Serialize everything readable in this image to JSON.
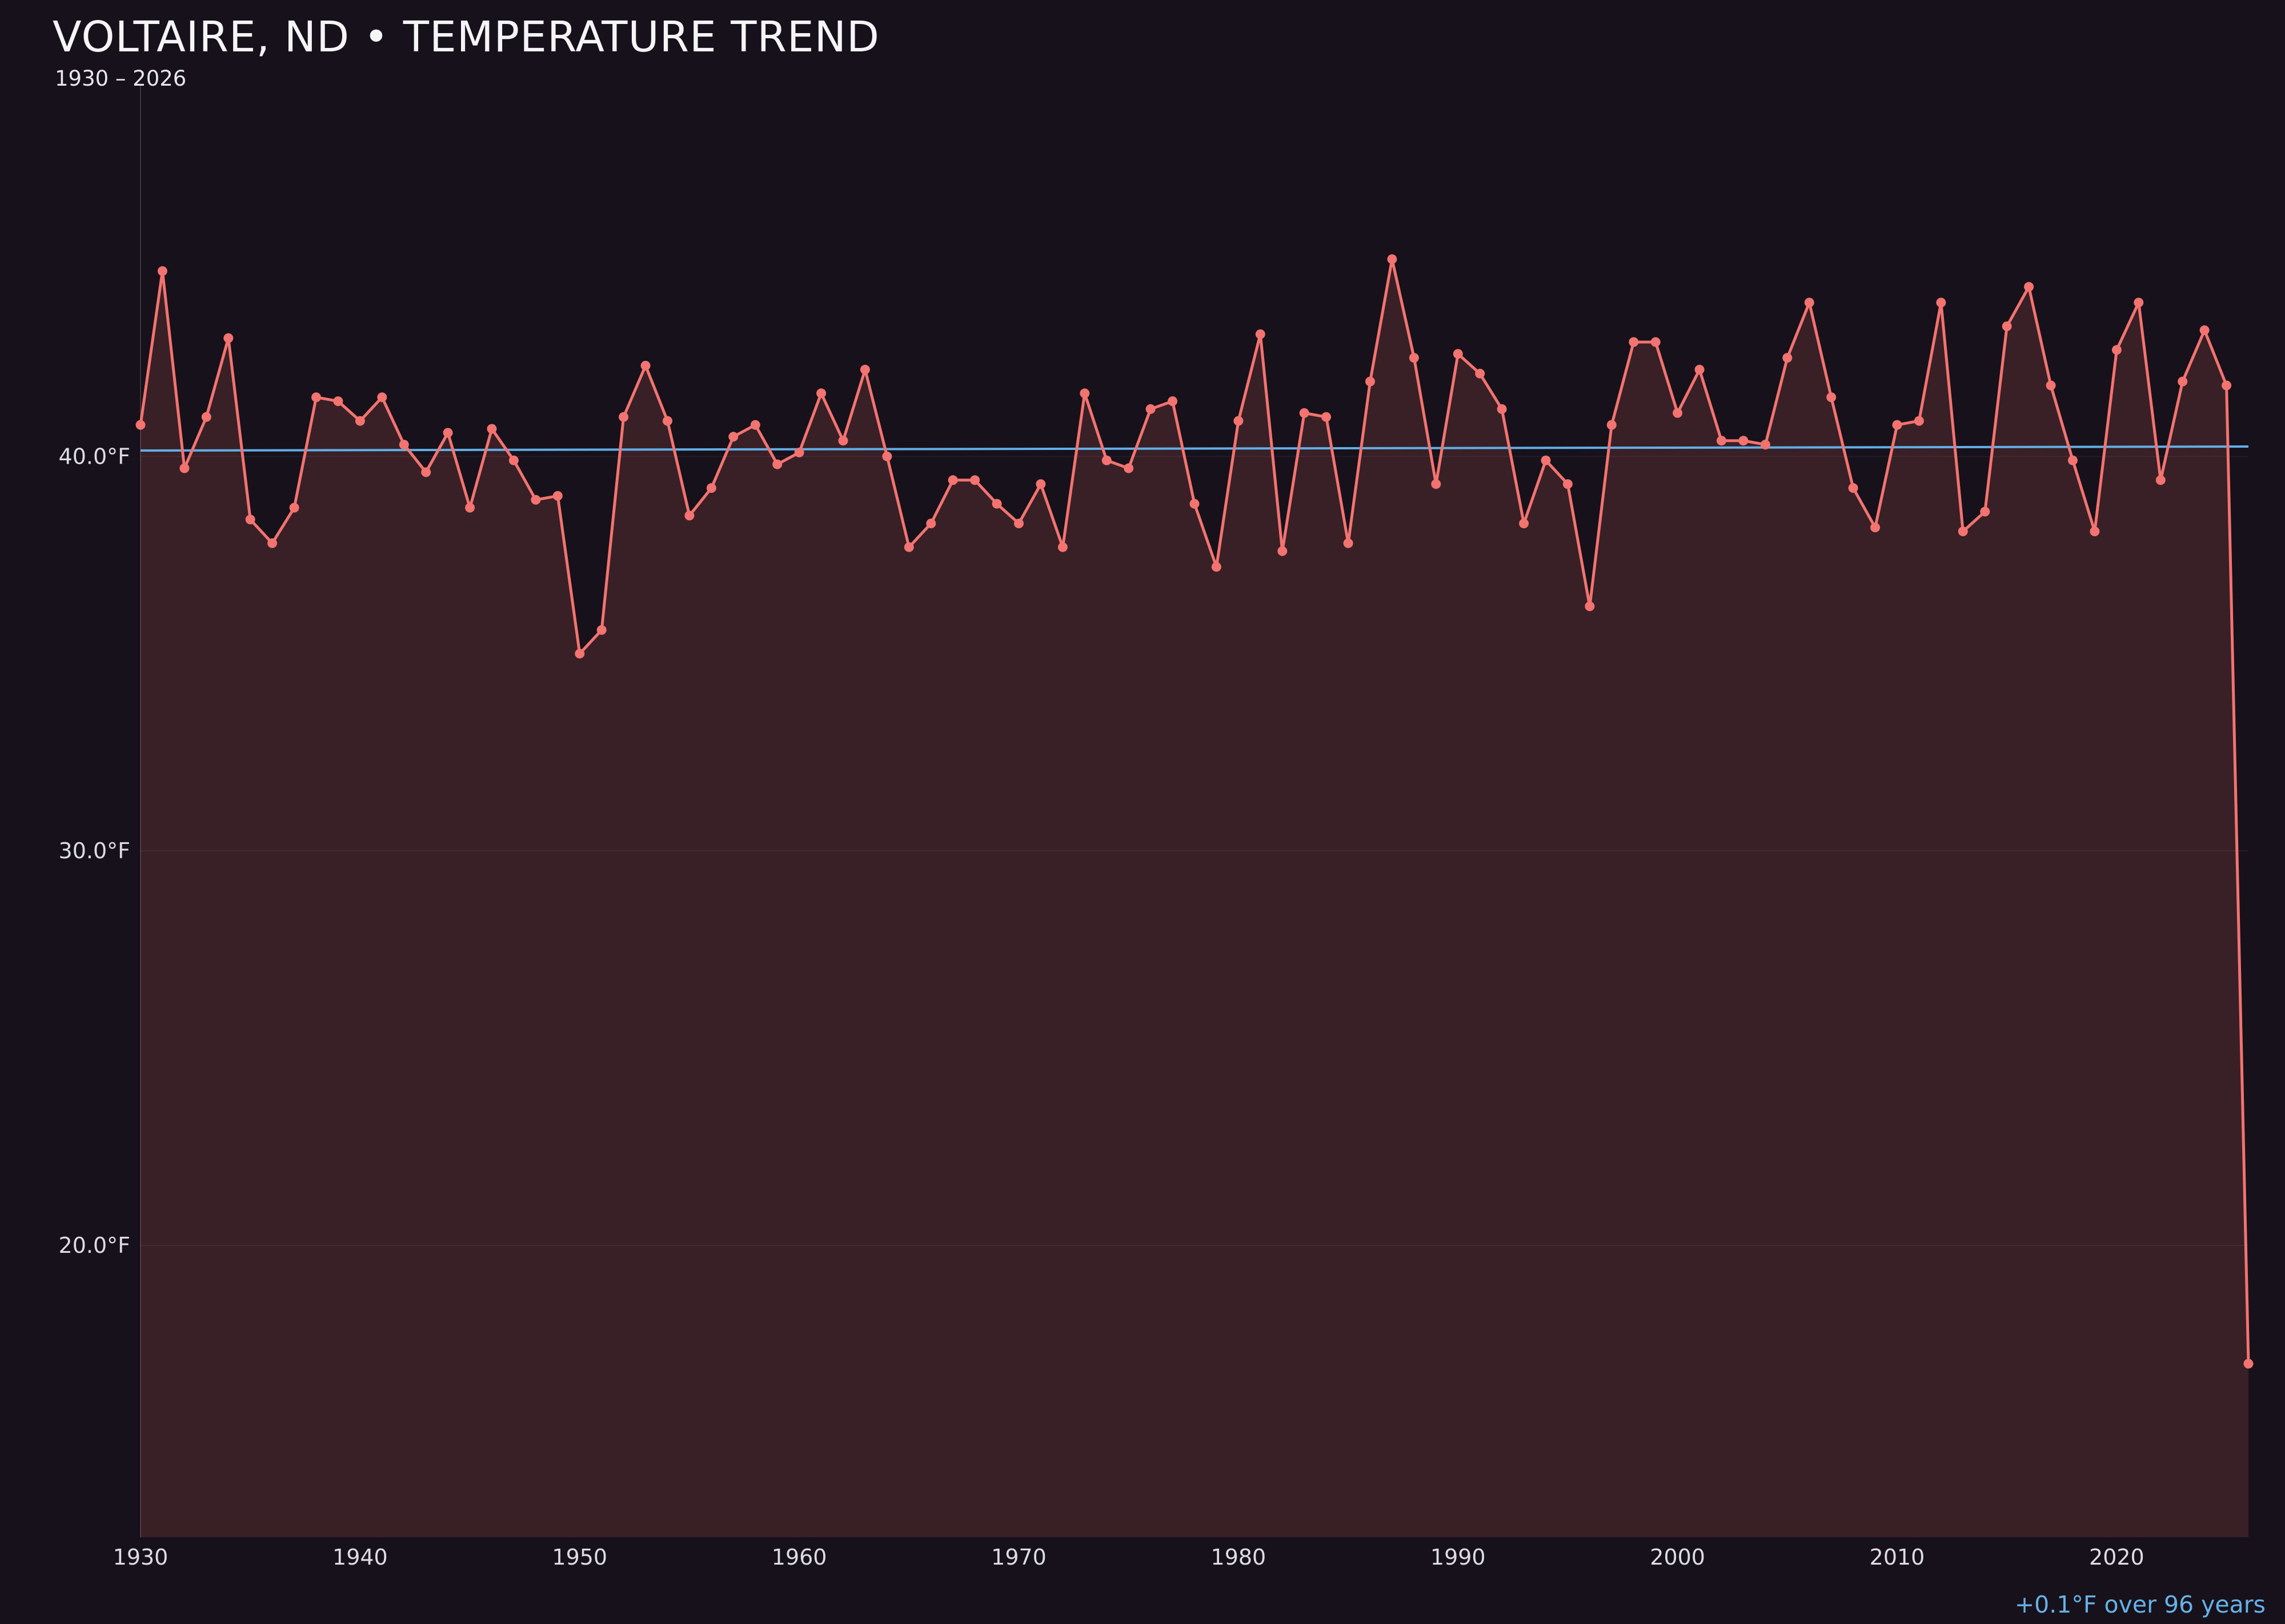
{
  "header": {
    "title": "VOLTAIRE, ND • TEMPERATURE TREND",
    "subtitle": "1930 – 2026"
  },
  "footer": {
    "trend_label": "+0.1°F over 96 years"
  },
  "colors": {
    "background": "#16111a",
    "line": "#f2736f",
    "fill": "rgba(242,115,111,0.16)",
    "trend": "#62aee6",
    "title_text": "#f5f5f7",
    "axis_text": "#dcdce2",
    "annotation_text": "#66b2e8"
  },
  "chart_data": {
    "type": "line",
    "title": "VOLTAIRE, ND • TEMPERATURE TREND",
    "subtitle": "1930 – 2026",
    "xlabel": "",
    "ylabel": "",
    "legend": "none",
    "grid": "faint-horizontal",
    "xlim": [
      1930,
      2026
    ],
    "ylim": [
      12.6,
      49.4
    ],
    "x_ticks": [
      1930,
      1940,
      1950,
      1960,
      1970,
      1980,
      1990,
      2000,
      2010,
      2020
    ],
    "y_ticks": [
      {
        "label": "40.0°F",
        "value": 40.0
      },
      {
        "label": "30.0°F",
        "value": 30.0
      },
      {
        "label": "20.0°F",
        "value": 20.0
      }
    ],
    "x": [
      1930,
      1931,
      1932,
      1933,
      1934,
      1935,
      1936,
      1937,
      1938,
      1939,
      1940,
      1941,
      1942,
      1943,
      1944,
      1945,
      1946,
      1947,
      1948,
      1949,
      1950,
      1951,
      1952,
      1953,
      1954,
      1955,
      1956,
      1957,
      1958,
      1959,
      1960,
      1961,
      1962,
      1963,
      1964,
      1965,
      1966,
      1967,
      1968,
      1969,
      1970,
      1971,
      1972,
      1973,
      1974,
      1975,
      1976,
      1977,
      1978,
      1979,
      1980,
      1981,
      1982,
      1983,
      1984,
      1985,
      1986,
      1987,
      1988,
      1989,
      1990,
      1991,
      1992,
      1993,
      1994,
      1995,
      1996,
      1997,
      1998,
      1999,
      2000,
      2001,
      2002,
      2003,
      2004,
      2005,
      2006,
      2007,
      2008,
      2009,
      2010,
      2011,
      2012,
      2013,
      2014,
      2015,
      2016,
      2017,
      2018,
      2019,
      2020,
      2021,
      2022,
      2023,
      2024,
      2025,
      2026
    ],
    "values": [
      40.8,
      44.7,
      39.7,
      41.0,
      43.0,
      38.4,
      37.8,
      38.7,
      41.5,
      41.4,
      40.9,
      41.5,
      40.3,
      39.6,
      40.6,
      38.7,
      40.7,
      39.9,
      38.9,
      39.0,
      35.0,
      35.6,
      41.0,
      42.3,
      40.9,
      38.5,
      39.2,
      40.5,
      40.8,
      39.8,
      40.1,
      41.6,
      40.4,
      42.2,
      40.0,
      37.7,
      38.3,
      39.4,
      39.4,
      38.8,
      38.3,
      39.3,
      37.7,
      41.6,
      39.9,
      39.7,
      41.2,
      41.4,
      38.8,
      37.2,
      40.9,
      43.1,
      37.6,
      41.1,
      41.0,
      37.8,
      41.9,
      45.0,
      42.5,
      39.3,
      42.6,
      42.1,
      41.2,
      38.3,
      39.9,
      39.3,
      36.2,
      40.8,
      42.9,
      42.9,
      41.1,
      42.2,
      40.4,
      40.4,
      40.3,
      42.5,
      43.9,
      41.5,
      39.2,
      38.2,
      40.8,
      40.9,
      43.9,
      38.1,
      38.6,
      43.3,
      44.3,
      41.8,
      39.9,
      38.1,
      42.7,
      43.9,
      39.4,
      41.9,
      43.2,
      41.8,
      17.0
    ],
    "trend_line": {
      "start_value": 40.15,
      "end_value": 40.25,
      "label": "+0.1°F over 96 years"
    }
  }
}
